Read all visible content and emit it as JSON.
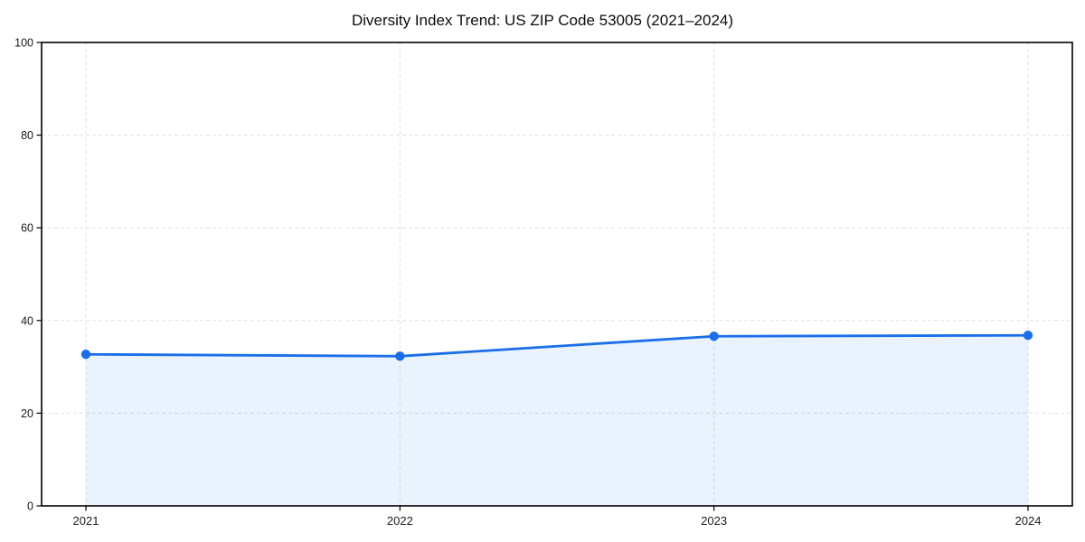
{
  "chart_data": {
    "type": "area",
    "title": "Diversity Index Trend: US ZIP Code 53005 (2021–2024)",
    "x": [
      "2021",
      "2022",
      "2023",
      "2024"
    ],
    "series": [
      {
        "name": "Diversity Index",
        "values": [
          32.7,
          32.3,
          36.6,
          36.8
        ]
      }
    ],
    "xlabel": "",
    "ylabel": "",
    "ylim": [
      0,
      100
    ],
    "yticks": [
      0,
      20,
      40,
      60,
      80,
      100
    ],
    "grid": true,
    "grid_style": "dashed",
    "legend": "none",
    "line_color": "#1a6fe8",
    "marker_color": "#1a6fe8",
    "fill_color": "rgba(26,111,232,0.09)",
    "grid_color": "#e0e0e0",
    "axis_color": "#000000",
    "tick_label_color": "#1a1a1a",
    "x_pad_frac": 0.043
  }
}
